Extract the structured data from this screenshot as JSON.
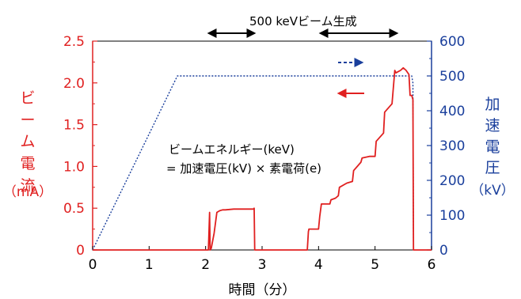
{
  "chart_data": {
    "type": "line",
    "xlabel": "時間（分）",
    "ylabel_left": [
      "ビ",
      "ー",
      "ム",
      "電",
      "流",
      "（mA）"
    ],
    "ylabel_right": [
      "加",
      "速",
      "電",
      "圧",
      "（kV）"
    ],
    "xlim": [
      0,
      6
    ],
    "ylim_left": [
      0,
      2.5
    ],
    "ylim_right": [
      0,
      600
    ],
    "x_ticks": [
      "0",
      "1",
      "2",
      "3",
      "4",
      "5",
      "6"
    ],
    "y_ticks_left": [
      "0",
      "0.5",
      "1.0",
      "1.5",
      "2.0",
      "2.5"
    ],
    "y_ticks_right": [
      "0",
      "100",
      "200",
      "300",
      "400",
      "500",
      "600"
    ],
    "colors": {
      "current": "#e02020",
      "voltage": "#1a3f9c",
      "axis_left": "#e02020",
      "axis_right": "#1a3f9c",
      "annotation": "#000000"
    },
    "series": [
      {
        "axis": "right",
        "style": "dotted",
        "x": [
          0,
          1.5,
          5.65,
          5.67,
          5.68
        ],
        "y": [
          0,
          500,
          500,
          480,
          0
        ]
      },
      {
        "axis": "left",
        "style": "solid",
        "x": [
          0,
          2.05,
          2.07,
          2.08,
          2.1,
          2.15,
          2.2,
          2.25,
          2.3,
          2.35,
          2.5,
          2.7,
          2.85,
          2.86,
          2.87,
          3.8,
          3.82,
          3.83,
          4.0,
          4.02,
          4.05,
          4.2,
          4.22,
          4.3,
          4.35,
          4.37,
          4.5,
          4.6,
          4.62,
          4.75,
          4.77,
          4.9,
          5.0,
          5.02,
          5.15,
          5.17,
          5.3,
          5.35,
          5.37,
          5.45,
          5.5,
          5.55,
          5.6,
          5.62,
          5.65,
          5.67,
          5.68,
          6.0
        ],
        "y": [
          0,
          0,
          0.45,
          0,
          0.02,
          0.2,
          0.45,
          0.47,
          0.48,
          0.48,
          0.49,
          0.49,
          0.49,
          0.5,
          0,
          0,
          0.22,
          0.25,
          0.25,
          0.4,
          0.55,
          0.55,
          0.6,
          0.62,
          0.65,
          0.75,
          0.8,
          0.82,
          0.95,
          1.05,
          1.1,
          1.12,
          1.12,
          1.3,
          1.4,
          1.65,
          1.75,
          2.15,
          2.12,
          2.15,
          2.18,
          2.15,
          2.1,
          1.85,
          1.85,
          1.8,
          0,
          0
        ]
      }
    ],
    "annotations": {
      "top_label": "500 keVビーム生成",
      "formula_line1": "ビームエネルギー(keV)",
      "formula_line2": "= 加速電圧(kV) × 素電荷(e)"
    }
  }
}
